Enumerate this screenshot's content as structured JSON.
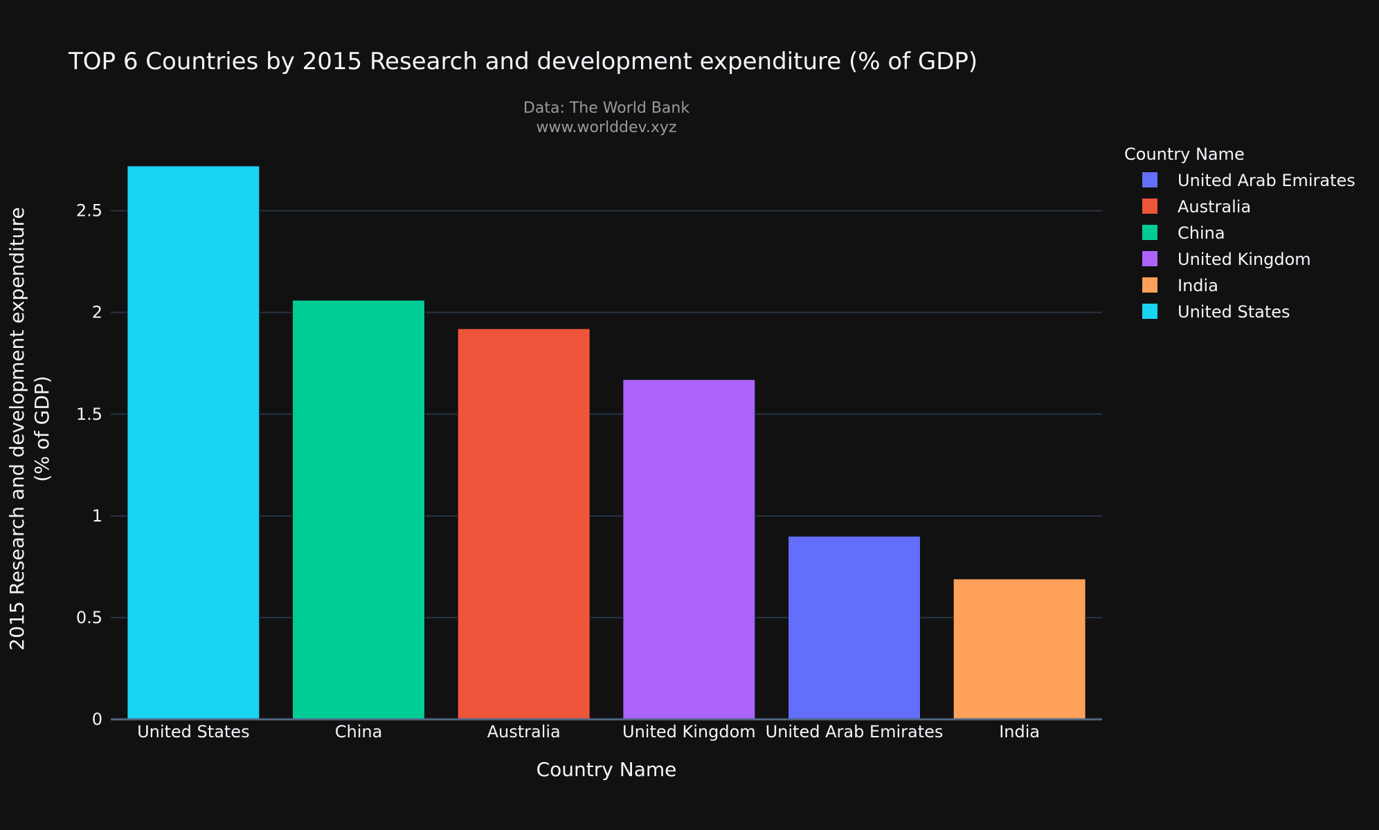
{
  "chart_data": {
    "type": "bar",
    "title": "TOP 6 Countries by 2015 Research and development expenditure (% of GDP)",
    "subtitle_lines": [
      "Data: The World Bank",
      "www.worlddev.xyz"
    ],
    "xlabel": "Country Name",
    "ylabel_lines": [
      "2015 Research and development expenditure",
      "(% of GDP)"
    ],
    "categories": [
      "United States",
      "China",
      "Australia",
      "United Kingdom",
      "United Arab Emirates",
      "India"
    ],
    "values": [
      2.72,
      2.06,
      1.92,
      1.67,
      0.9,
      0.69
    ],
    "bar_colors": [
      "#19d3f3",
      "#00cc96",
      "#ef553b",
      "#ab63fa",
      "#636efa",
      "#ffa15a"
    ],
    "ylim": [
      0,
      2.74
    ],
    "yticks": [
      0,
      0.5,
      1,
      1.5,
      2,
      2.5
    ],
    "ytick_labels": [
      "0",
      "0.5",
      "1",
      "1.5",
      "2",
      "2.5"
    ],
    "grid": true,
    "legend": {
      "title": "Country Name",
      "placement": "right",
      "entries": [
        {
          "name": "United Arab Emirates",
          "color": "#636efa"
        },
        {
          "name": "Australia",
          "color": "#ef553b"
        },
        {
          "name": "China",
          "color": "#00cc96"
        },
        {
          "name": "United Kingdom",
          "color": "#ab63fa"
        },
        {
          "name": "India",
          "color": "#ffa15a"
        },
        {
          "name": "United States",
          "color": "#19d3f3"
        }
      ]
    },
    "background_color": "#111111"
  }
}
